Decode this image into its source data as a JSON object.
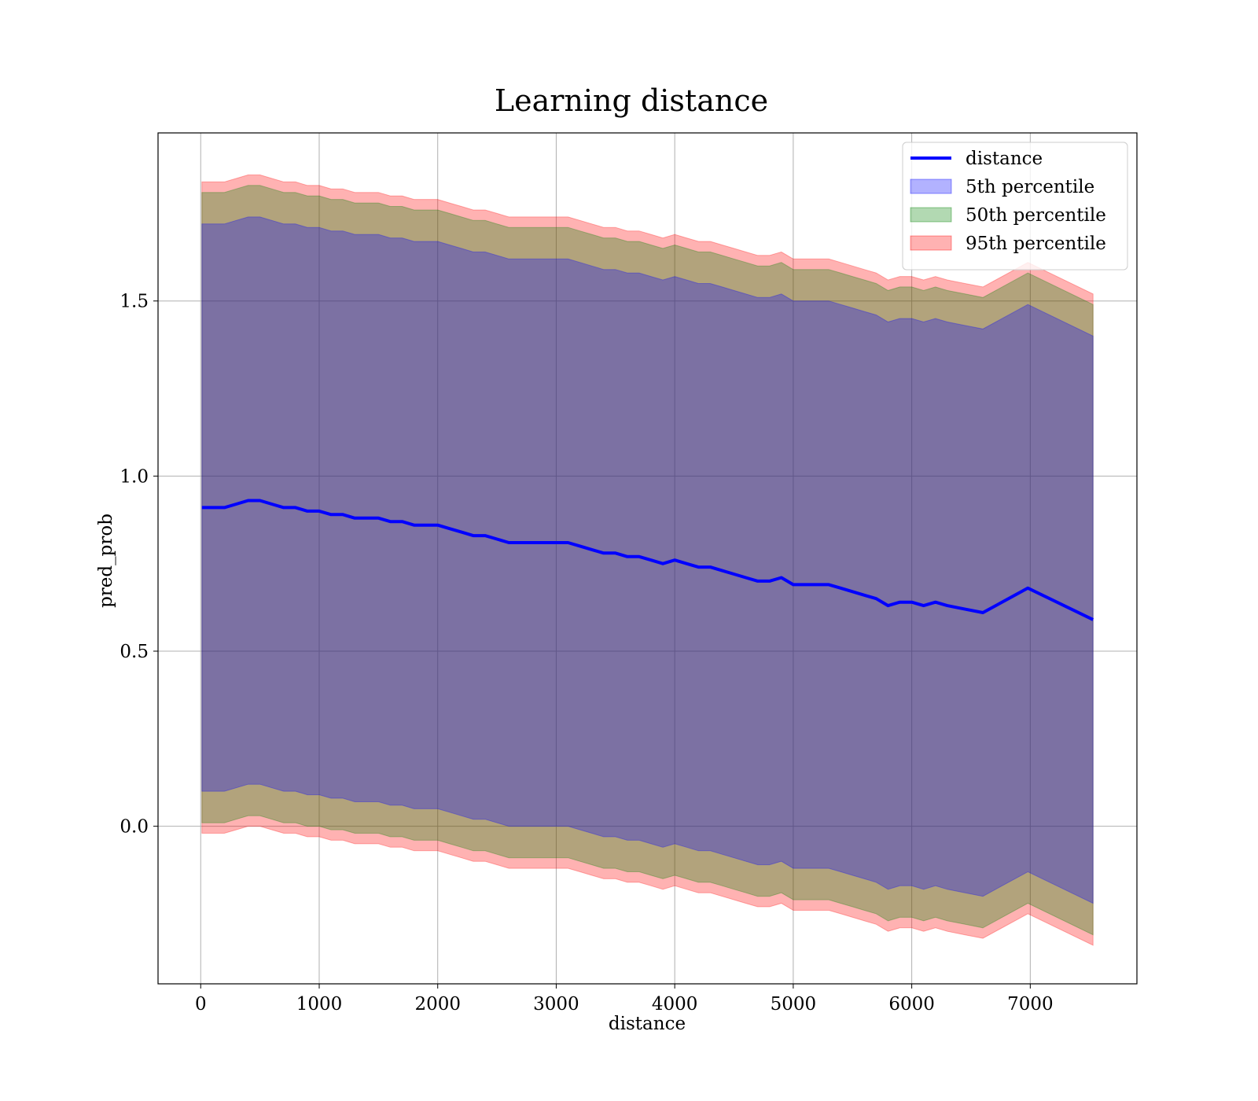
{
  "chart_data": {
    "type": "area",
    "title": "Learning distance",
    "xlabel": "distance",
    "ylabel": "pred_prob",
    "xlim": [
      -360,
      7900
    ],
    "ylim": [
      -0.45,
      1.98
    ],
    "xticks": [
      0,
      1000,
      2000,
      3000,
      4000,
      5000,
      6000,
      7000
    ],
    "yticks": [
      0.0,
      0.5,
      1.0,
      1.5
    ],
    "xtick_labels": [
      "0",
      "1000",
      "2000",
      "3000",
      "4000",
      "5000",
      "6000",
      "7000"
    ],
    "ytick_labels": [
      "0.0",
      "0.5",
      "1.0",
      "1.5"
    ],
    "grid": true,
    "legend_position": "top-right",
    "x": [
      10,
      100,
      200,
      300,
      400,
      500,
      600,
      700,
      800,
      900,
      1000,
      1100,
      1200,
      1300,
      1400,
      1500,
      1600,
      1700,
      1800,
      1900,
      2000,
      2100,
      2200,
      2300,
      2400,
      2500,
      2600,
      2700,
      2800,
      2900,
      3000,
      3100,
      3200,
      3300,
      3400,
      3500,
      3600,
      3700,
      3800,
      3900,
      4000,
      4100,
      4200,
      4300,
      4400,
      4500,
      4600,
      4700,
      4800,
      4900,
      5000,
      5100,
      5200,
      5300,
      5400,
      5500,
      5600,
      5700,
      5800,
      5900,
      6000,
      6100,
      6200,
      6300,
      6450,
      6600,
      6980,
      7530
    ],
    "series": [
      {
        "name": "distance",
        "kind": "line",
        "color": "#0000ff",
        "values": [
          0.91,
          0.91,
          0.91,
          0.92,
          0.93,
          0.93,
          0.92,
          0.91,
          0.91,
          0.9,
          0.9,
          0.89,
          0.89,
          0.88,
          0.88,
          0.88,
          0.87,
          0.87,
          0.86,
          0.86,
          0.86,
          0.85,
          0.84,
          0.83,
          0.83,
          0.82,
          0.81,
          0.81,
          0.81,
          0.81,
          0.81,
          0.81,
          0.8,
          0.79,
          0.78,
          0.78,
          0.77,
          0.77,
          0.76,
          0.75,
          0.76,
          0.75,
          0.74,
          0.74,
          0.73,
          0.72,
          0.71,
          0.7,
          0.7,
          0.71,
          0.69,
          0.69,
          0.69,
          0.69,
          0.68,
          0.67,
          0.66,
          0.65,
          0.63,
          0.64,
          0.64,
          0.63,
          0.64,
          0.63,
          0.62,
          0.61,
          0.68,
          0.59
        ]
      },
      {
        "name": "5th percentile",
        "kind": "band",
        "color": "#0000ff",
        "alpha": 0.3,
        "half_width": [
          0.81,
          0.81,
          0.81,
          0.81,
          0.81,
          0.81,
          0.81,
          0.81,
          0.81,
          0.81,
          0.81,
          0.81,
          0.81,
          0.81,
          0.81,
          0.81,
          0.81,
          0.81,
          0.81,
          0.81,
          0.81,
          0.81,
          0.81,
          0.81,
          0.81,
          0.81,
          0.81,
          0.81,
          0.81,
          0.81,
          0.81,
          0.81,
          0.81,
          0.81,
          0.81,
          0.81,
          0.81,
          0.81,
          0.81,
          0.81,
          0.81,
          0.81,
          0.81,
          0.81,
          0.81,
          0.81,
          0.81,
          0.81,
          0.81,
          0.81,
          0.81,
          0.81,
          0.81,
          0.81,
          0.81,
          0.81,
          0.81,
          0.81,
          0.81,
          0.81,
          0.81,
          0.81,
          0.81,
          0.81,
          0.81,
          0.81,
          0.81,
          0.81
        ]
      },
      {
        "name": "50th percentile",
        "kind": "band",
        "color": "#008000",
        "alpha": 0.3,
        "half_width": [
          0.9,
          0.9,
          0.9,
          0.9,
          0.9,
          0.9,
          0.9,
          0.9,
          0.9,
          0.9,
          0.9,
          0.9,
          0.9,
          0.9,
          0.9,
          0.9,
          0.9,
          0.9,
          0.9,
          0.9,
          0.9,
          0.9,
          0.9,
          0.9,
          0.9,
          0.9,
          0.9,
          0.9,
          0.9,
          0.9,
          0.9,
          0.9,
          0.9,
          0.9,
          0.9,
          0.9,
          0.9,
          0.9,
          0.9,
          0.9,
          0.9,
          0.9,
          0.9,
          0.9,
          0.9,
          0.9,
          0.9,
          0.9,
          0.9,
          0.9,
          0.9,
          0.9,
          0.9,
          0.9,
          0.9,
          0.9,
          0.9,
          0.9,
          0.9,
          0.9,
          0.9,
          0.9,
          0.9,
          0.9,
          0.9,
          0.9,
          0.9,
          0.9
        ]
      },
      {
        "name": "95th percentile",
        "kind": "band",
        "color": "#ff0000",
        "alpha": 0.3,
        "half_width": [
          0.93,
          0.93,
          0.93,
          0.93,
          0.93,
          0.93,
          0.93,
          0.93,
          0.93,
          0.93,
          0.93,
          0.93,
          0.93,
          0.93,
          0.93,
          0.93,
          0.93,
          0.93,
          0.93,
          0.93,
          0.93,
          0.93,
          0.93,
          0.93,
          0.93,
          0.93,
          0.93,
          0.93,
          0.93,
          0.93,
          0.93,
          0.93,
          0.93,
          0.93,
          0.93,
          0.93,
          0.93,
          0.93,
          0.93,
          0.93,
          0.93,
          0.93,
          0.93,
          0.93,
          0.93,
          0.93,
          0.93,
          0.93,
          0.93,
          0.93,
          0.93,
          0.93,
          0.93,
          0.93,
          0.93,
          0.93,
          0.93,
          0.93,
          0.93,
          0.93,
          0.93,
          0.93,
          0.93,
          0.93,
          0.93,
          0.93,
          0.93,
          0.93
        ]
      }
    ]
  }
}
